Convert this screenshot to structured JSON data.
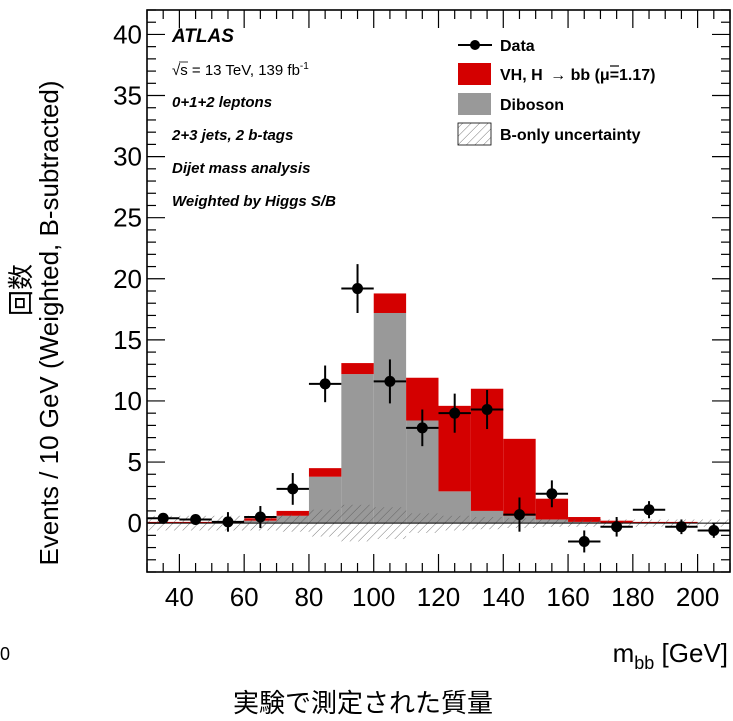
{
  "chart_data": {
    "type": "bar",
    "stacked": true,
    "x_bin_edges": [
      30,
      40,
      50,
      60,
      70,
      80,
      90,
      100,
      110,
      120,
      130,
      140,
      150,
      160,
      170,
      180,
      190,
      200,
      210
    ],
    "series": [
      {
        "name": "Diboson",
        "color": "#999999",
        "values": [
          0,
          0,
          0,
          0.2,
          0.6,
          3.8,
          12.2,
          17.2,
          8.4,
          2.6,
          1.0,
          0.6,
          0.3,
          0.1,
          0,
          0,
          0,
          0
        ]
      },
      {
        "name": "VH, H → bb̄ (μ=1.17)",
        "color": "#d40000",
        "values": [
          0.1,
          0.1,
          0.1,
          0.2,
          0.4,
          0.7,
          0.9,
          1.6,
          3.5,
          7.0,
          10.0,
          6.3,
          1.7,
          0.4,
          0.2,
          0.1,
          0.1,
          0
        ]
      }
    ],
    "data_points": {
      "name": "Data",
      "x": [
        35,
        45,
        55,
        65,
        75,
        85,
        95,
        105,
        115,
        125,
        135,
        145,
        155,
        165,
        175,
        185,
        195,
        205
      ],
      "y": [
        0.4,
        0.3,
        0.1,
        0.5,
        2.8,
        11.4,
        19.2,
        11.6,
        7.8,
        9.0,
        9.3,
        0.7,
        2.4,
        -1.5,
        -0.3,
        1.1,
        -0.3,
        -0.6
      ],
      "yerr": [
        0.4,
        0.4,
        0.8,
        0.9,
        1.3,
        1.5,
        2.0,
        1.8,
        1.5,
        1.6,
        1.6,
        1.4,
        1.1,
        0.9,
        0.8,
        0.7,
        0.6,
        0.6
      ]
    },
    "uncertainty_band": {
      "name": "B-only uncertainty",
      "half_width": [
        0.6,
        0.6,
        0.6,
        0.6,
        0.7,
        1.1,
        1.5,
        1.3,
        0.8,
        0.6,
        0.5,
        0.4,
        0.3,
        0.3,
        0.3,
        0.3,
        0.3,
        0.3
      ]
    },
    "xlim": [
      30,
      210
    ],
    "ylim": [
      -4,
      42
    ],
    "x_ticks": [
      40,
      60,
      80,
      100,
      120,
      140,
      160,
      180,
      200
    ],
    "y_ticks": [
      0,
      5,
      10,
      15,
      20,
      25,
      30,
      35,
      40
    ],
    "xlabel": "m_bb [GeV]",
    "ylabel": "Events / 10 GeV (Weighted, B-subtracted)",
    "legend_position": "top-right",
    "grid": false
  },
  "labels": {
    "experiment": "ATLAS",
    "energy": "√s = 13 TeV, 139 fb",
    "energy_sup": "-1",
    "line1": "0+1+2 leptons",
    "line2": "2+3 jets, 2 b-tags",
    "line3": "Dijet mass analysis",
    "line4": "Weighted by Higgs S/B",
    "xlabel_main": "m",
    "xlabel_sub": "bb",
    "xlabel_unit": " [GeV]",
    "ylabel": "Events / 10 GeV (Weighted, B-subtracted)",
    "ylabel_ja": "回数",
    "xlabel_ja": "実験で測定された質量",
    "stray_zero": "0"
  },
  "legend": {
    "data": "Data",
    "signal_prefix": "VH, H ",
    "signal_arrow": "→",
    "signal_bb": " bb",
    "signal_mu": " (μ=1.17)",
    "diboson": "Diboson",
    "uncertainty": "B-only uncertainty"
  }
}
